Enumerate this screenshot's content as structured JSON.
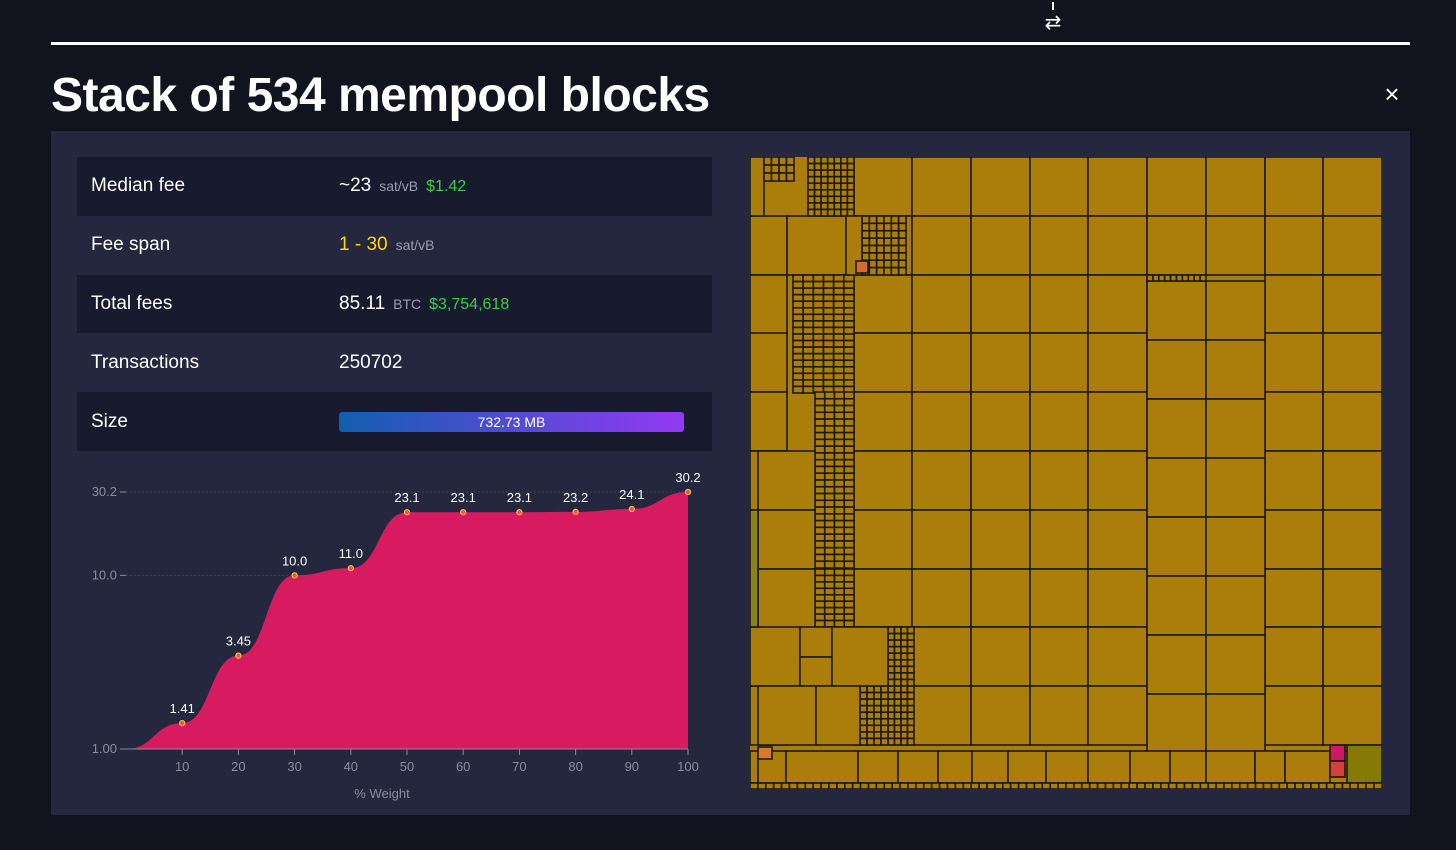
{
  "header": {
    "swap_icon": "swap-arrows-icon",
    "title": "Stack of 534 mempool blocks",
    "close_icon": "close-icon",
    "close_glyph": "×"
  },
  "stats": {
    "median_fee": {
      "label": "Median fee",
      "value": "~23",
      "unit": "sat/vB",
      "fiat": "$1.42"
    },
    "fee_span": {
      "label": "Fee span",
      "value": "1 - 30",
      "unit": "sat/vB"
    },
    "total_fees": {
      "label": "Total fees",
      "value": "85.11",
      "unit": "BTC",
      "fiat": "$3,754,618"
    },
    "transactions": {
      "label": "Transactions",
      "value": "250702"
    },
    "size": {
      "label": "Size",
      "value": "732.73 MB"
    }
  },
  "colors": {
    "background": "#11131f",
    "panel": "#24273e",
    "row_dark": "#181b2d",
    "curve_fill": "#d81b60",
    "fiat_green": "#3bcc49",
    "fee_yellow": "#ffd800",
    "treemap_block": "#ab7d0b"
  },
  "chart_data": {
    "type": "area",
    "xlabel": "% Weight",
    "x": [
      0,
      10,
      20,
      30,
      40,
      50,
      60,
      70,
      80,
      90,
      100
    ],
    "x_ticks": [
      "10",
      "20",
      "30",
      "40",
      "50",
      "60",
      "70",
      "80",
      "90",
      "100"
    ],
    "y_ticks": [
      "1.00",
      "10.0",
      "30.2"
    ],
    "y_tick_values": [
      1.0,
      10.0,
      30.2
    ],
    "yscale": "log",
    "ylim": [
      1.0,
      30.2
    ],
    "points": [
      {
        "x": 10,
        "y": 1.41,
        "label": "1.41"
      },
      {
        "x": 20,
        "y": 3.45,
        "label": "3.45"
      },
      {
        "x": 30,
        "y": 10.0,
        "label": "10.0"
      },
      {
        "x": 40,
        "y": 11.0,
        "label": "11.0"
      },
      {
        "x": 50,
        "y": 23.1,
        "label": "23.1"
      },
      {
        "x": 60,
        "y": 23.1,
        "label": "23.1"
      },
      {
        "x": 70,
        "y": 23.1,
        "label": "23.1"
      },
      {
        "x": 80,
        "y": 23.2,
        "label": "23.2"
      },
      {
        "x": 90,
        "y": 24.1,
        "label": "24.1"
      },
      {
        "x": 100,
        "y": 30.2,
        "label": "30.2"
      }
    ]
  }
}
